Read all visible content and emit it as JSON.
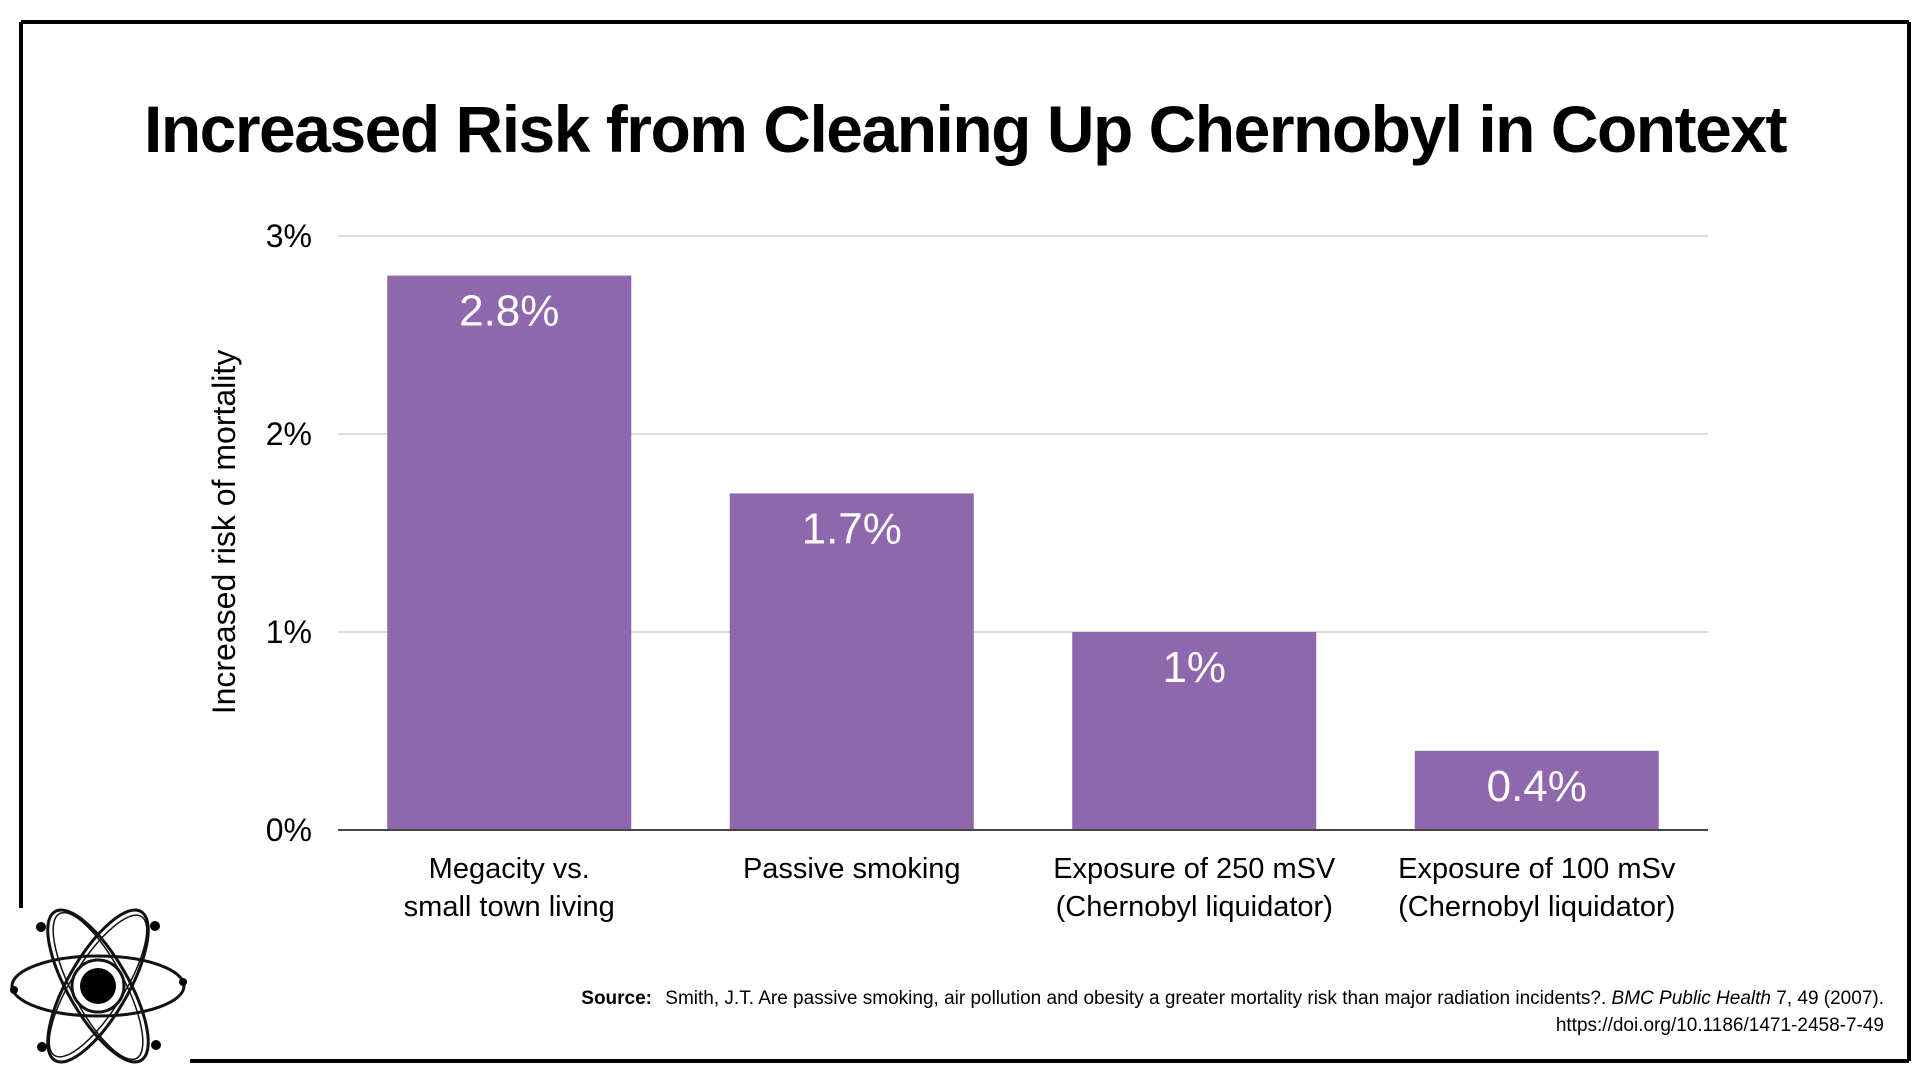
{
  "colors": {
    "bar": "#8e67ad",
    "grid": "#d0d0d0",
    "axis": "#444444",
    "frame": "#000000"
  },
  "icons": {
    "logo": "atom-icon"
  },
  "source": {
    "label": "Source:",
    "text_before": "Smith, J.T. Are passive smoking, air pollution and obesity a greater mortality risk than major radiation incidents?. ",
    "journal": "BMC Public Health",
    "text_after": " 7, 49 (2007).",
    "doi": "https://doi.org/10.1186/1471-2458-7-49"
  },
  "chart_data": {
    "type": "bar",
    "title": "Increased Risk from Cleaning Up Chernobyl in Context",
    "xlabel": "",
    "ylabel": "Increased risk of mortality",
    "ylim": [
      0,
      3
    ],
    "yticks": [
      0,
      1,
      2,
      3
    ],
    "ytick_labels": [
      "0%",
      "1%",
      "2%",
      "3%"
    ],
    "grid": true,
    "categories": [
      [
        "Megacity vs.",
        "small town living"
      ],
      [
        "Passive smoking"
      ],
      [
        "Exposure of 250 mSV",
        "(Chernobyl liquidator)"
      ],
      [
        "Exposure of 100 mSv",
        "(Chernobyl liquidator)"
      ]
    ],
    "values": [
      2.8,
      1.7,
      1.0,
      0.4
    ],
    "data_labels": [
      "2.8%",
      "1.7%",
      "1%",
      "0.4%"
    ]
  }
}
